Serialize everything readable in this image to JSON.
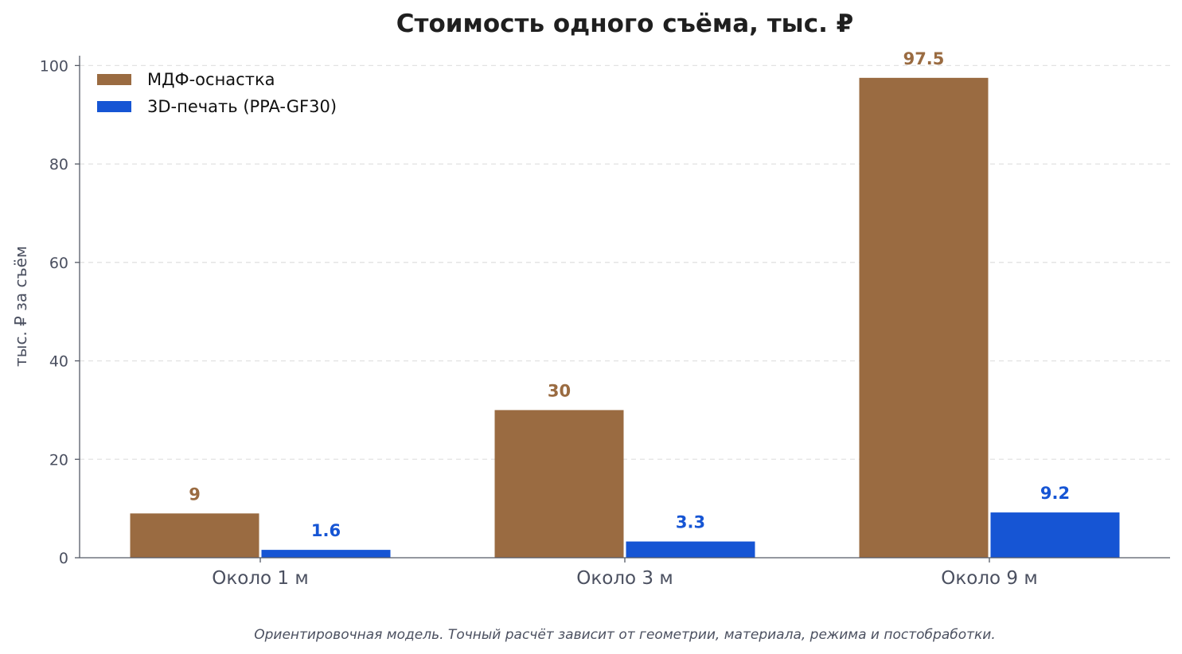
{
  "chart_data": {
    "type": "bar",
    "title": "Стоимость одного съёма, тыс. ₽",
    "xlabel": "",
    "ylabel": "тыс. ₽ за съём",
    "categories": [
      "Около 1 м",
      "Около 3 м",
      "Около 9 м"
    ],
    "series": [
      {
        "name": "МДФ-оснастка",
        "values": [
          9,
          30,
          97.5
        ],
        "labels": [
          "9",
          "30",
          "97.5"
        ],
        "color": "#9a6b41"
      },
      {
        "name": "3D-печать (PPA-GF30)",
        "values": [
          1.6,
          3.3,
          9.2
        ],
        "labels": [
          "1.6",
          "3.3",
          "9.2"
        ],
        "color": "#1655d4"
      }
    ],
    "ylim": [
      0,
      102
    ],
    "yticks": [
      0,
      20,
      40,
      60,
      80,
      100
    ],
    "grid": true,
    "legend": "top-left",
    "footnote": "Ориентировочная модель. Точный расчёт зависит от геометрии, материала, режима и постобработки."
  }
}
